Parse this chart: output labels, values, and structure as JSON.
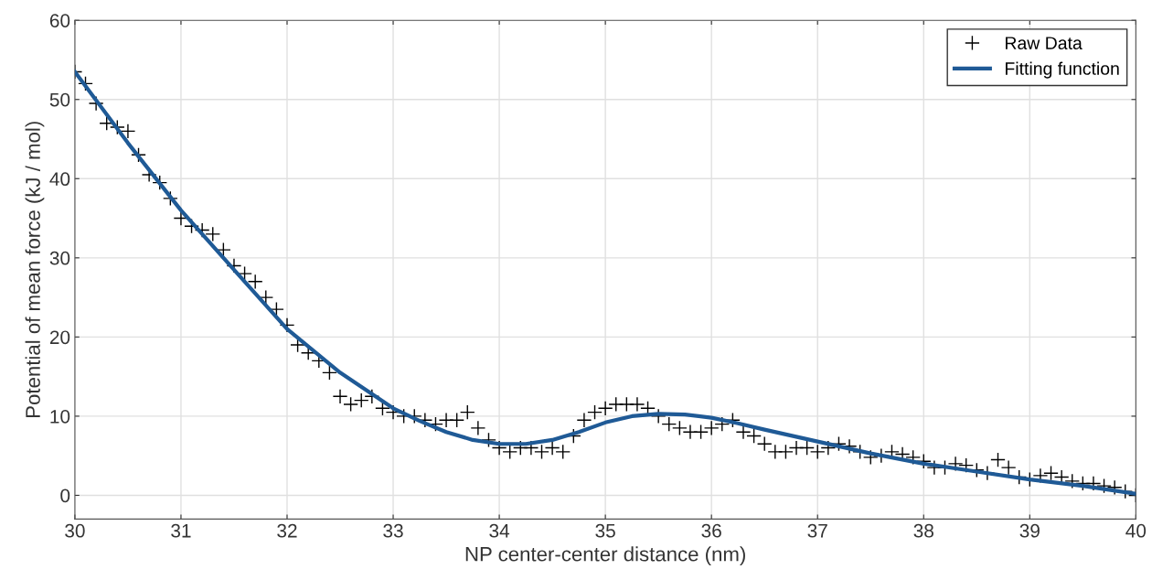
{
  "chart_data": {
    "type": "scatter",
    "xlabel": "NP center-center distance (nm)",
    "ylabel": "Potential of mean force (kJ / mol)",
    "xlim": [
      30,
      40
    ],
    "xticks": [
      30,
      31,
      32,
      33,
      34,
      35,
      36,
      37,
      38,
      39,
      40
    ],
    "ylim": [
      -3,
      60
    ],
    "yticks": [
      0,
      10,
      20,
      30,
      40,
      50,
      60
    ],
    "grid": true,
    "legend": "top right",
    "series": [
      {
        "name": "Raw Data",
        "marker": "cross",
        "color": "#000000",
        "x": [
          30.0,
          30.1,
          30.2,
          30.3,
          30.4,
          30.5,
          30.6,
          30.7,
          30.8,
          30.9,
          31.0,
          31.1,
          31.2,
          31.3,
          31.4,
          31.5,
          31.6,
          31.7,
          31.8,
          31.9,
          32.0,
          32.1,
          32.2,
          32.3,
          32.4,
          32.5,
          32.6,
          32.7,
          32.8,
          32.9,
          33.0,
          33.1,
          33.2,
          33.3,
          33.4,
          33.5,
          33.6,
          33.7,
          33.8,
          33.9,
          34.0,
          34.1,
          34.2,
          34.3,
          34.4,
          34.5,
          34.6,
          34.7,
          34.8,
          34.9,
          35.0,
          35.1,
          35.2,
          35.3,
          35.4,
          35.5,
          35.6,
          35.7,
          35.8,
          35.9,
          36.0,
          36.1,
          36.2,
          36.3,
          36.4,
          36.5,
          36.6,
          36.7,
          36.8,
          36.9,
          37.0,
          37.1,
          37.2,
          37.3,
          37.4,
          37.5,
          37.6,
          37.7,
          37.8,
          37.9,
          38.0,
          38.1,
          38.2,
          38.3,
          38.4,
          38.5,
          38.6,
          38.7,
          38.8,
          38.9,
          39.0,
          39.1,
          39.2,
          39.3,
          39.4,
          39.5,
          39.6,
          39.7,
          39.8,
          39.9,
          40.0
        ],
        "values": [
          53.5,
          52,
          49.5,
          47,
          46.5,
          46,
          43,
          40.5,
          39.5,
          37.5,
          35,
          34,
          33.5,
          33,
          31,
          29,
          28,
          27,
          25,
          23.5,
          21.5,
          19,
          18,
          17,
          15.5,
          12.5,
          11.5,
          12,
          12.5,
          11,
          10.5,
          10,
          10,
          9.5,
          9,
          9.5,
          9.5,
          10.5,
          8.5,
          7,
          6,
          5.5,
          6,
          6,
          5.5,
          6,
          5.5,
          7.5,
          9.5,
          10.5,
          11,
          11.5,
          11.5,
          11.5,
          11,
          10,
          9,
          8.5,
          8,
          8,
          8.5,
          9,
          9.5,
          8,
          7.5,
          6.5,
          5.5,
          5.5,
          6,
          6,
          5.5,
          6,
          6.5,
          6.2,
          5.5,
          4.8,
          5,
          5.5,
          5.2,
          4.8,
          4.3,
          3.5,
          3.5,
          4,
          3.8,
          3.2,
          2.8,
          4.5,
          3.5,
          2.3,
          2,
          2.5,
          2.8,
          2.3,
          1.8,
          1.5,
          1.5,
          1.2,
          1,
          0.5,
          0
        ]
      },
      {
        "name": "Fitting function",
        "type": "line",
        "marker": "none",
        "line_style": "solid",
        "color": "#1f5a96",
        "x": [
          30,
          30.5,
          31,
          31.5,
          32,
          32.5,
          33,
          33.25,
          33.5,
          33.75,
          34,
          34.25,
          34.5,
          34.75,
          35,
          35.25,
          35.5,
          35.75,
          36,
          36.25,
          36.5,
          37,
          37.5,
          38,
          38.5,
          39,
          39.5,
          40
        ],
        "values": [
          53.5,
          44.5,
          36,
          28.5,
          21,
          15.5,
          11,
          9.4,
          8,
          7,
          6.5,
          6.5,
          7,
          8,
          9.2,
          10,
          10.3,
          10.2,
          9.8,
          9.1,
          8.3,
          6.8,
          5.3,
          4,
          3,
          2,
          1.2,
          0.2
        ]
      }
    ]
  }
}
